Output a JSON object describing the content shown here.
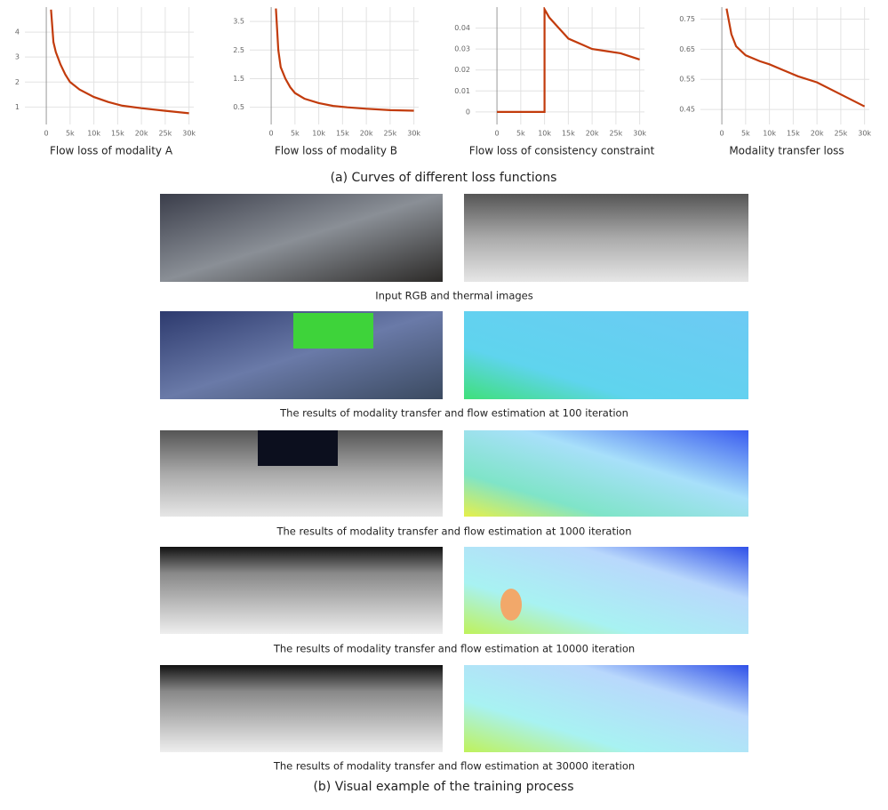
{
  "chart_data": [
    {
      "type": "line",
      "title": "Flow loss of modality A",
      "xlim": [
        -4500,
        31000
      ],
      "ylim": [
        0.3,
        5
      ],
      "xticks": [
        0,
        {
          "value": 5000,
          "label": "5k"
        },
        {
          "value": 10000,
          "label": "10k"
        },
        {
          "value": 15000,
          "label": "15k"
        },
        {
          "value": 20000,
          "label": "20k"
        },
        {
          "value": 25000,
          "label": "25k"
        },
        {
          "value": 30000,
          "label": "30k"
        }
      ],
      "yticks": [
        1,
        2,
        3,
        4
      ],
      "grid": true,
      "x": [
        1000,
        1500,
        2000,
        3000,
        4000,
        5000,
        7000,
        10000,
        13000,
        16000,
        20000,
        25000,
        30000
      ],
      "series": [
        {
          "color": "#c23b0c",
          "values": [
            4.9,
            3.6,
            3.2,
            2.7,
            2.3,
            2.0,
            1.7,
            1.4,
            1.2,
            1.05,
            0.95,
            0.85,
            0.75
          ]
        }
      ]
    },
    {
      "type": "line",
      "title": "Flow loss of modality B",
      "xlim": [
        -4500,
        31000
      ],
      "ylim": [
        -0.1,
        4.0
      ],
      "xticks": [
        0,
        {
          "value": 5000,
          "label": "5k"
        },
        {
          "value": 10000,
          "label": "10k"
        },
        {
          "value": 15000,
          "label": "15k"
        },
        {
          "value": 20000,
          "label": "20k"
        },
        {
          "value": 25000,
          "label": "25k"
        },
        {
          "value": 30000,
          "label": "30k"
        }
      ],
      "yticks": [
        0.5,
        1.5,
        2.5,
        3.5
      ],
      "grid": true,
      "x": [
        1000,
        1500,
        2000,
        3000,
        4000,
        5000,
        7000,
        10000,
        13000,
        16000,
        20000,
        25000,
        30000
      ],
      "series": [
        {
          "color": "#c23b0c",
          "values": [
            3.95,
            2.5,
            1.9,
            1.5,
            1.2,
            1.0,
            0.8,
            0.65,
            0.55,
            0.5,
            0.45,
            0.4,
            0.38
          ]
        }
      ]
    },
    {
      "type": "line",
      "title": "Flow loss of consistency constraint",
      "xlim": [
        -4500,
        31000
      ],
      "ylim": [
        -0.006,
        0.05
      ],
      "xticks": [
        0,
        {
          "value": 5000,
          "label": "5k"
        },
        {
          "value": 10000,
          "label": "10k"
        },
        {
          "value": 15000,
          "label": "15k"
        },
        {
          "value": 20000,
          "label": "20k"
        },
        {
          "value": 25000,
          "label": "25k"
        },
        {
          "value": 30000,
          "label": "30k"
        }
      ],
      "yticks": [
        0,
        0.01,
        0.02,
        0.03,
        0.04
      ],
      "grid": true,
      "x": [
        0,
        10000,
        10000,
        11000,
        13000,
        15000,
        18000,
        20000,
        23000,
        26000,
        30000
      ],
      "series": [
        {
          "color": "#c23b0c",
          "values": [
            0,
            0,
            0.049,
            0.045,
            0.04,
            0.035,
            0.032,
            0.03,
            0.029,
            0.028,
            0.025
          ]
        }
      ]
    },
    {
      "type": "line",
      "title": "Modality transfer loss",
      "xlim": [
        -4500,
        31000
      ],
      "ylim": [
        0.4,
        0.79
      ],
      "xticks": [
        0,
        {
          "value": 5000,
          "label": "5k"
        },
        {
          "value": 10000,
          "label": "10k"
        },
        {
          "value": 15000,
          "label": "15k"
        },
        {
          "value": 20000,
          "label": "20k"
        },
        {
          "value": 25000,
          "label": "25k"
        },
        {
          "value": 30000,
          "label": "30k"
        }
      ],
      "yticks": [
        0.45,
        0.55,
        0.65,
        0.75
      ],
      "grid": true,
      "x": [
        1000,
        2000,
        3000,
        5000,
        8000,
        10000,
        13000,
        16000,
        20000,
        25000,
        30000
      ],
      "series": [
        {
          "color": "#c23b0c",
          "values": [
            0.785,
            0.7,
            0.66,
            0.63,
            0.61,
            0.6,
            0.58,
            0.56,
            0.54,
            0.5,
            0.46
          ]
        }
      ]
    }
  ],
  "caption_a": "(a) Curves of different loss functions",
  "rows": [
    {
      "caption": "Input RGB and thermal images"
    },
    {
      "caption": "The results of modality transfer and flow estimation at 100 iteration"
    },
    {
      "caption": "The results of modality transfer and flow estimation at 1000 iteration"
    },
    {
      "caption": "The results of modality transfer and flow estimation at 10000 iteration"
    },
    {
      "caption": "The results of modality transfer and flow estimation at 30000 iteration"
    }
  ],
  "caption_b": "(b) Visual example of the training process"
}
